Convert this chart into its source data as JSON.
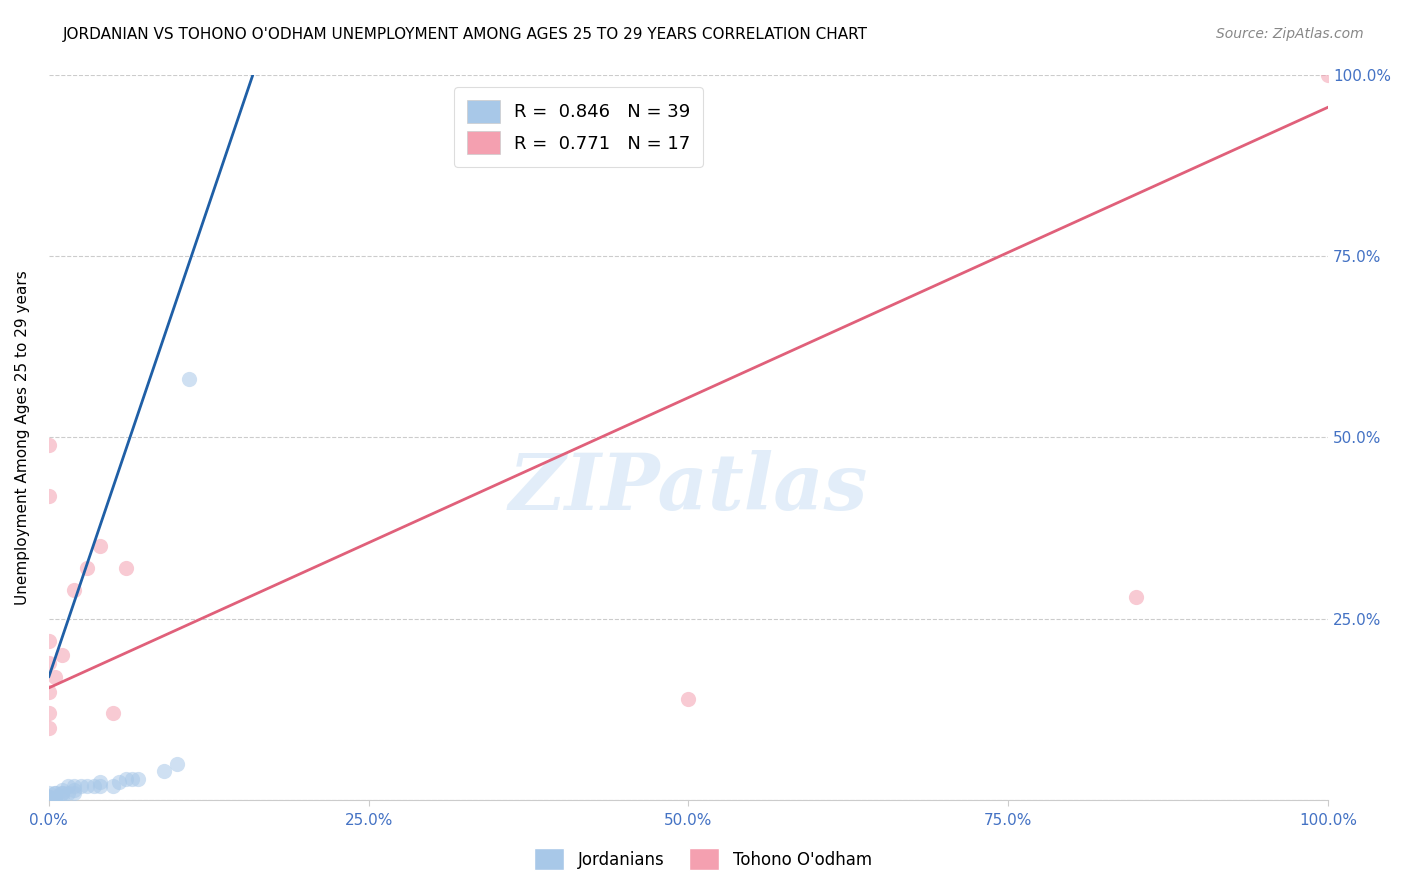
{
  "title": "JORDANIAN VS TOHONO O'ODHAM UNEMPLOYMENT AMONG AGES 25 TO 29 YEARS CORRELATION CHART",
  "source": "Source: ZipAtlas.com",
  "ylabel": "Unemployment Among Ages 25 to 29 years",
  "xlim": [
    0.0,
    1.0
  ],
  "ylim": [
    0.0,
    1.0
  ],
  "xticks": [
    0.0,
    0.25,
    0.5,
    0.75,
    1.0
  ],
  "yticks": [
    0.0,
    0.25,
    0.5,
    0.75,
    1.0
  ],
  "xticklabels": [
    "0.0%",
    "25.0%",
    "50.0%",
    "75.0%",
    "100.0%"
  ],
  "right_yticklabels": [
    "",
    "25.0%",
    "50.0%",
    "75.0%",
    "100.0%"
  ],
  "R_blue": 0.846,
  "N_blue": 39,
  "R_pink": 0.771,
  "N_pink": 17,
  "blue_color": "#a8c8e8",
  "pink_color": "#f4a0b0",
  "blue_line_color": "#1f5fa6",
  "pink_line_color": "#e0607a",
  "label_blue": "Jordanians",
  "label_pink": "Tohono O'odham",
  "watermark": "ZIPatlas",
  "blue_scatter_x": [
    0.0,
    0.0,
    0.0,
    0.0,
    0.0,
    0.0,
    0.0,
    0.0,
    0.0,
    0.0,
    0.005,
    0.005,
    0.005,
    0.005,
    0.005,
    0.01,
    0.01,
    0.01,
    0.01,
    0.015,
    0.015,
    0.02,
    0.02,
    0.02,
    0.025,
    0.03,
    0.035,
    0.04,
    0.04,
    0.05,
    0.055,
    0.06,
    0.065,
    0.07,
    0.09,
    0.1,
    0.11,
    0.0,
    0.0
  ],
  "blue_scatter_y": [
    0.0,
    0.0,
    0.0,
    0.0,
    0.0,
    0.0,
    0.0,
    0.005,
    0.005,
    0.01,
    0.0,
    0.0,
    0.005,
    0.01,
    0.01,
    0.005,
    0.01,
    0.01,
    0.015,
    0.01,
    0.02,
    0.01,
    0.015,
    0.02,
    0.02,
    0.02,
    0.02,
    0.02,
    0.025,
    0.02,
    0.025,
    0.03,
    0.03,
    0.03,
    0.04,
    0.05,
    0.58,
    0.0,
    0.0
  ],
  "pink_scatter_x": [
    0.0,
    0.0,
    0.0,
    0.005,
    0.01,
    0.02,
    0.03,
    0.04,
    0.05,
    0.06,
    0.5,
    0.85,
    1.0,
    0.0,
    0.0,
    0.0,
    0.0
  ],
  "pink_scatter_y": [
    0.15,
    0.19,
    0.22,
    0.17,
    0.2,
    0.29,
    0.32,
    0.35,
    0.12,
    0.32,
    0.14,
    0.28,
    1.0,
    0.49,
    0.42,
    0.1,
    0.12
  ],
  "slope_blue": 5.2,
  "intercept_blue": 0.17,
  "slope_pink": 0.8,
  "intercept_pink": 0.155,
  "title_fontsize": 11,
  "axis_label_fontsize": 11,
  "tick_fontsize": 11,
  "legend_fontsize": 13,
  "source_fontsize": 10,
  "scatter_size": 120,
  "scatter_alpha": 0.55,
  "grid_color": "#cccccc",
  "background_color": "#ffffff",
  "tick_color": "#4472c4",
  "right_ytick_color": "#4472c4"
}
